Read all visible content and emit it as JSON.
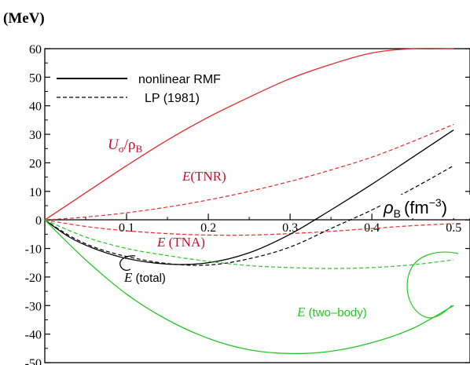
{
  "chart_data": {
    "type": "line",
    "unit_label": "(MeV)",
    "xlabel_symbol": "ρ",
    "xlabel_sub": "B",
    "xlabel_unit": "(fm",
    "xlabel_exp": "−3",
    "xlabel_close": ")",
    "xlim": [
      0,
      0.52
    ],
    "ylim": [
      -50,
      60
    ],
    "xticks": [
      0.1,
      0.2,
      0.3,
      0.4,
      0.5
    ],
    "yticks": [
      60,
      50,
      40,
      30,
      20,
      10,
      0,
      -10,
      -20,
      -30,
      -40,
      -50
    ],
    "legend": [
      {
        "label": "nonlinear RMF",
        "style": "solid"
      },
      {
        "label": "LP (1981)",
        "style": "dashed"
      }
    ],
    "labels": {
      "u_sigma": {
        "main": "U",
        "sub1": "σ",
        "slash": "/ρ",
        "sub2": "B"
      },
      "tnr": {
        "e": "E",
        "rest": "(TNR)"
      },
      "tna": {
        "e": "E",
        "rest": " (TNA)"
      },
      "total": {
        "e": "E",
        "rest": " (total)"
      },
      "two_body": {
        "e": "E",
        "rest": " (two–body)"
      }
    },
    "colors": {
      "red": "#e8282a",
      "green": "#26c626",
      "black": "#000000",
      "label_red": "#c8102e"
    },
    "series": [
      {
        "key": "u_sigma",
        "color": "#e8282a",
        "style": "solid",
        "x": [
          0,
          0.05,
          0.1,
          0.15,
          0.2,
          0.25,
          0.3,
          0.35,
          0.4,
          0.45,
          0.5
        ],
        "y": [
          0,
          9.5,
          19,
          28,
          36,
          43,
          49.5,
          54.5,
          58.5,
          61.5,
          63.5
        ]
      },
      {
        "key": "tnr",
        "color": "#e8282a",
        "style": "dashed",
        "x": [
          0,
          0.05,
          0.1,
          0.15,
          0.2,
          0.25,
          0.3,
          0.35,
          0.4,
          0.45,
          0.5
        ],
        "y": [
          0,
          1,
          2.5,
          4.5,
          7,
          10,
          13.5,
          17.5,
          22,
          27.5,
          33.5
        ]
      },
      {
        "key": "tna",
        "color": "#e8282a",
        "style": "dashed",
        "x": [
          0,
          0.05,
          0.1,
          0.15,
          0.2,
          0.25,
          0.3,
          0.35,
          0.4,
          0.45,
          0.5
        ],
        "y": [
          0,
          -2.3,
          -3.8,
          -4.8,
          -5.3,
          -5.3,
          -4.8,
          -4,
          -3,
          -2,
          -1.3
        ]
      },
      {
        "key": "rmf_total",
        "color": "#000000",
        "style": "solid",
        "x": [
          0,
          0.03,
          0.06,
          0.1,
          0.15,
          0.2,
          0.25,
          0.3,
          0.35,
          0.4,
          0.45,
          0.5
        ],
        "y": [
          0,
          -6,
          -10,
          -13.5,
          -15.5,
          -15,
          -11.5,
          -5,
          3.5,
          12.5,
          22,
          31.5
        ]
      },
      {
        "key": "lp_total",
        "color": "#000000",
        "style": "dashed",
        "x": [
          0,
          0.03,
          0.06,
          0.1,
          0.15,
          0.2,
          0.25,
          0.3,
          0.35,
          0.4,
          0.45,
          0.5
        ],
        "y": [
          0,
          -5.5,
          -9.5,
          -12.8,
          -15.3,
          -15.8,
          -13.6,
          -9.5,
          -3,
          3.5,
          11,
          19
        ]
      },
      {
        "key": "two_body_green_dashed",
        "color": "#26c626",
        "style": "dashed",
        "x": [
          0,
          0.05,
          0.1,
          0.15,
          0.2,
          0.25,
          0.3,
          0.35,
          0.4,
          0.45,
          0.5
        ],
        "y": [
          0,
          -6,
          -10,
          -12.5,
          -14.5,
          -16,
          -16.7,
          -17,
          -16.7,
          -15.7,
          -14
        ]
      },
      {
        "key": "two_body",
        "color": "#26c626",
        "style": "solid",
        "x": [
          0,
          0.05,
          0.1,
          0.15,
          0.2,
          0.25,
          0.3,
          0.35,
          0.4,
          0.45,
          0.5
        ],
        "y": [
          0,
          -14,
          -26,
          -35,
          -41.5,
          -45.5,
          -46.8,
          -46,
          -43,
          -38,
          -30
        ]
      }
    ]
  }
}
